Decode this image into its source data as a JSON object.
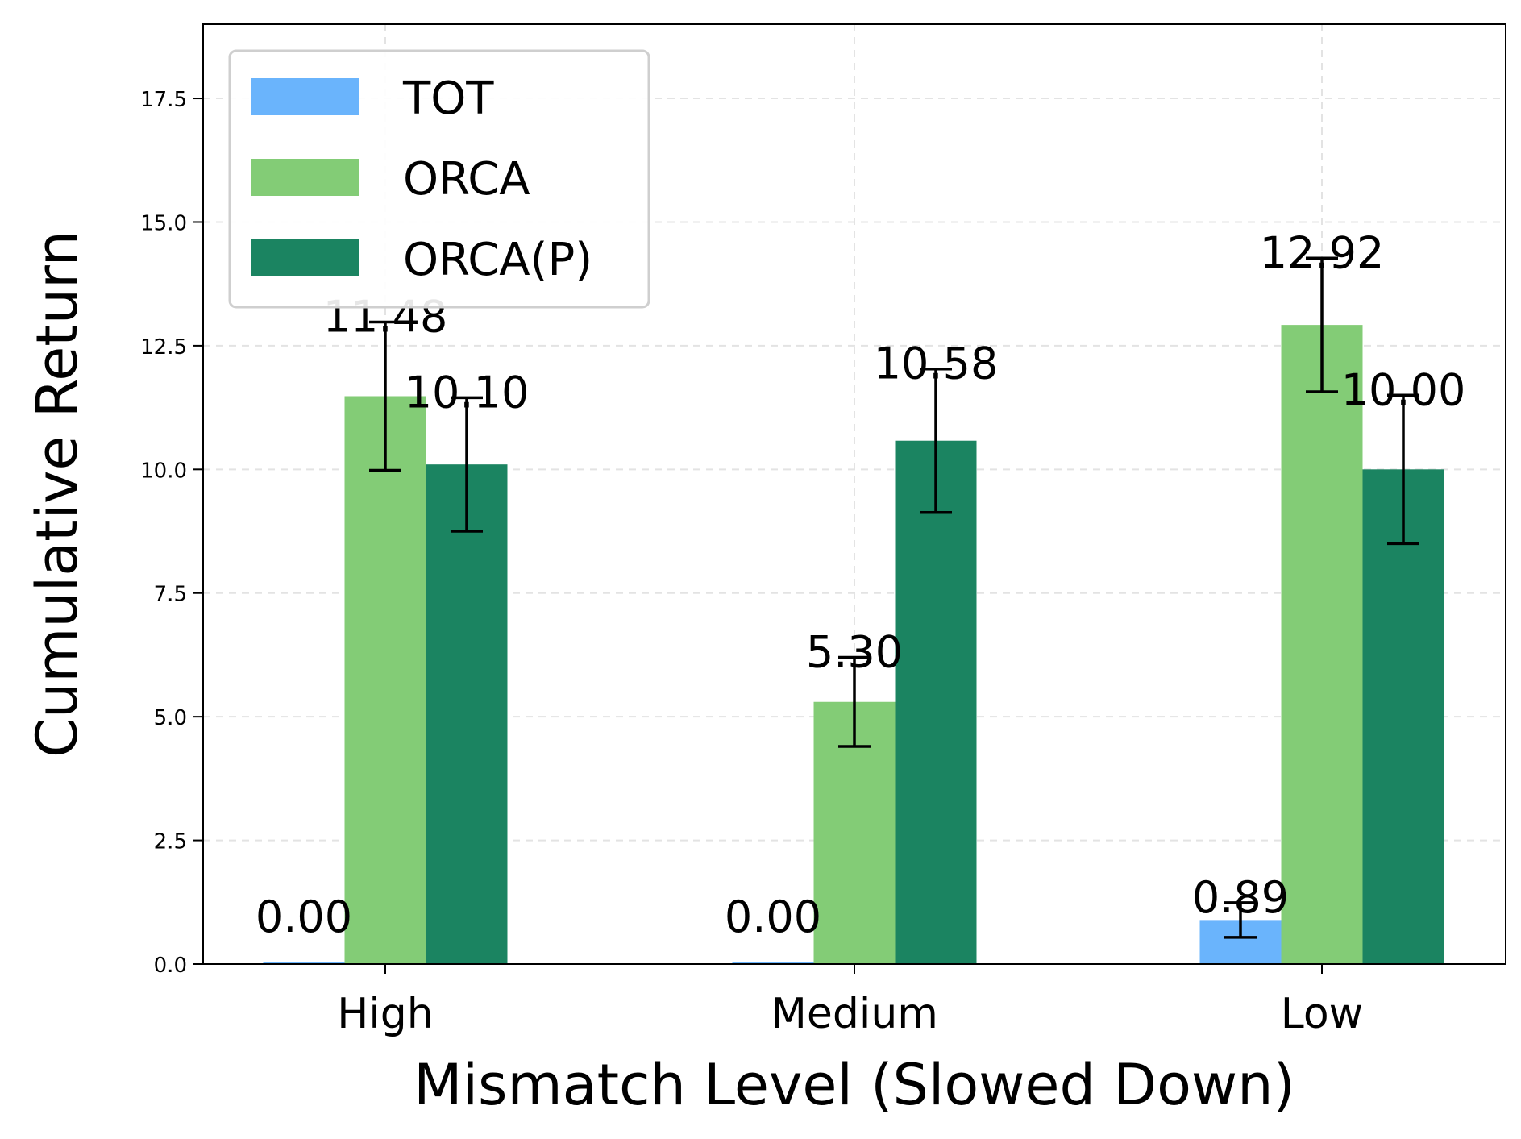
{
  "chart_data": {
    "type": "bar",
    "title": "",
    "xlabel": "Mismatch Level (Slowed Down)",
    "ylabel": "Cumulative Return",
    "categories": [
      "High",
      "Medium",
      "Low"
    ],
    "ylim": [
      0,
      19
    ],
    "yticks": [
      "0.0",
      "2.5",
      "5.0",
      "7.5",
      "10.0",
      "12.5",
      "15.0",
      "17.5"
    ],
    "grid": true,
    "legend_position": "top-left",
    "series": [
      {
        "name": "TOT",
        "color": "#6ab4fc",
        "values": [
          0.0,
          0.0,
          0.89
        ],
        "errors": [
          0.0,
          0.0,
          0.35
        ],
        "labels": [
          "0.00",
          "0.00",
          "0.89"
        ]
      },
      {
        "name": "ORCA",
        "color": "#83cc76",
        "values": [
          11.48,
          5.3,
          12.92
        ],
        "errors": [
          1.5,
          0.9,
          1.35
        ],
        "labels": [
          "11.48",
          "5.30",
          "12.92"
        ]
      },
      {
        "name": "ORCA(P)",
        "color": "#1b8461",
        "values": [
          10.1,
          10.58,
          10.0
        ],
        "errors": [
          1.35,
          1.45,
          1.5
        ],
        "labels": [
          "10.10",
          "10.58",
          "10.00"
        ]
      }
    ]
  }
}
